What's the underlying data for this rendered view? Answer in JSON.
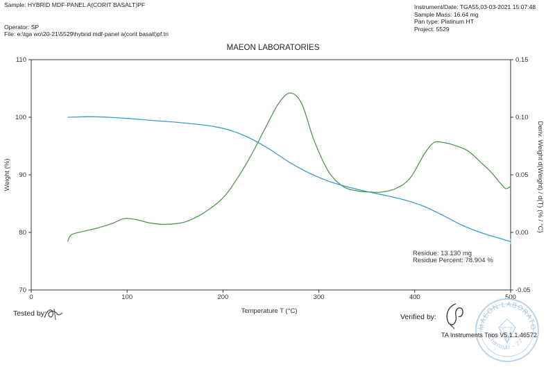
{
  "header": {
    "sample": "Sample: HYBRID MDF-PANEL A(CORIT BASALT)PF",
    "operator": "Operator: SP",
    "file": "File: e:\\tga wo\\20-21\\5529\\hybrid mdf-panel a(corit basalt)pf.tri",
    "instrument": "Instrument/Date: TGA55,03-03-2021 15:07:48",
    "mass": "Sample Mass: 16.64 mg",
    "pan": "Pan type: Platinum HT",
    "project": "Project: 5529"
  },
  "footer": {
    "tested_by": "Tested by:",
    "verified_by": "Verified by:",
    "software": "TA Instruments Trios V5.1.1.46572",
    "stamp_top": "MAEON LABORATORY",
    "stamp_bottom": "Chennai - 77"
  },
  "colors": {
    "weight": "#3b9bcf",
    "deriv": "#4e9a4a",
    "axis": "#333333"
  },
  "chart_data": {
    "type": "line",
    "title": "MAEON LABORATORIES",
    "xlabel": "Temperature T (°C)",
    "ylabel_left": "Weight (%)",
    "ylabel_right": "Deriv. Weight d(Weight) / d(T) (% / °C)",
    "xlim": [
      0,
      500
    ],
    "ylim_left": [
      70,
      110
    ],
    "ylim_right": [
      -0.05,
      0.15
    ],
    "x_ticks": [
      0,
      100,
      200,
      300,
      400,
      500
    ],
    "y_left_ticks": [
      70,
      80,
      90,
      100,
      110
    ],
    "y_right_ticks": [
      "-0.05",
      "0.00",
      "0.05",
      "0.10",
      "0.15"
    ],
    "series": [
      {
        "name": "Weight (%)",
        "axis": "left",
        "x": [
          38,
          60,
          80,
          100,
          130,
          160,
          190,
          210,
          230,
          250,
          270,
          290,
          310,
          330,
          350,
          370,
          390,
          410,
          430,
          450,
          470,
          490,
          500
        ],
        "y": [
          100,
          100.1,
          100.0,
          99.8,
          99.4,
          99.0,
          98.4,
          97.6,
          96.2,
          94.3,
          92.1,
          90.3,
          88.9,
          87.9,
          87.1,
          86.4,
          85.6,
          84.5,
          82.9,
          81.2,
          79.9,
          78.9,
          78.4
        ]
      },
      {
        "name": "Deriv. Weight (% / °C)",
        "axis": "right",
        "x": [
          38,
          42,
          55,
          70,
          85,
          97,
          110,
          125,
          140,
          160,
          180,
          200,
          215,
          230,
          245,
          258,
          270,
          282,
          295,
          310,
          325,
          340,
          355,
          365,
          380,
          395,
          410,
          420,
          430,
          440,
          455,
          470,
          480,
          490,
          495,
          500
        ],
        "y": [
          -0.008,
          -0.002,
          0.001,
          0.004,
          0.008,
          0.012,
          0.011,
          0.008,
          0.007,
          0.009,
          0.017,
          0.03,
          0.047,
          0.068,
          0.092,
          0.112,
          0.121,
          0.112,
          0.08,
          0.053,
          0.04,
          0.036,
          0.035,
          0.035,
          0.038,
          0.047,
          0.068,
          0.078,
          0.078,
          0.076,
          0.071,
          0.06,
          0.052,
          0.042,
          0.038,
          0.04
        ]
      }
    ],
    "annotations": {
      "residue": "Residue: 13.130 mg",
      "residue_percent": "Residue Percent: 78.904 %"
    }
  }
}
